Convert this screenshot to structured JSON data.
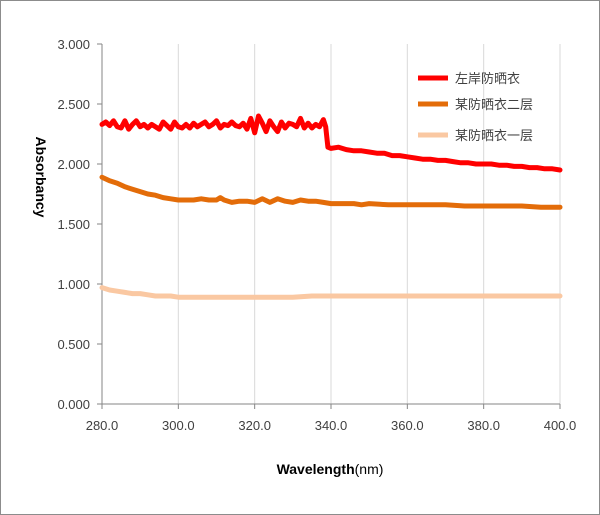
{
  "chart_data": {
    "type": "line",
    "xlabel": "Wavelength",
    "xlabel_unit": "(nm)",
    "ylabel": "Absorbancy",
    "xlim": [
      280,
      400
    ],
    "ylim": [
      0,
      3
    ],
    "x_ticks": [
      "280.0",
      "300.0",
      "320.0",
      "340.0",
      "360.0",
      "380.0",
      "400.0"
    ],
    "y_ticks": [
      "0.000",
      "0.500",
      "1.000",
      "1.500",
      "2.000",
      "2.500",
      "3.000"
    ],
    "grid": "vertical",
    "legend_position": "top-right",
    "series": [
      {
        "name": "左岸防晒衣",
        "color": "#ff0000",
        "points": [
          [
            280,
            2.33
          ],
          [
            281,
            2.35
          ],
          [
            282,
            2.32
          ],
          [
            283,
            2.36
          ],
          [
            284,
            2.31
          ],
          [
            285,
            2.3
          ],
          [
            286,
            2.36
          ],
          [
            287,
            2.29
          ],
          [
            288,
            2.33
          ],
          [
            289,
            2.36
          ],
          [
            290,
            2.31
          ],
          [
            291,
            2.33
          ],
          [
            292,
            2.3
          ],
          [
            293,
            2.33
          ],
          [
            294,
            2.31
          ],
          [
            295,
            2.29
          ],
          [
            296,
            2.35
          ],
          [
            297,
            2.32
          ],
          [
            298,
            2.29
          ],
          [
            299,
            2.35
          ],
          [
            300,
            2.31
          ],
          [
            301,
            2.3
          ],
          [
            302,
            2.33
          ],
          [
            303,
            2.3
          ],
          [
            304,
            2.34
          ],
          [
            305,
            2.31
          ],
          [
            306,
            2.33
          ],
          [
            307,
            2.35
          ],
          [
            308,
            2.31
          ],
          [
            309,
            2.33
          ],
          [
            310,
            2.36
          ],
          [
            311,
            2.3
          ],
          [
            312,
            2.33
          ],
          [
            313,
            2.32
          ],
          [
            314,
            2.35
          ],
          [
            315,
            2.32
          ],
          [
            316,
            2.31
          ],
          [
            317,
            2.34
          ],
          [
            318,
            2.29
          ],
          [
            319,
            2.38
          ],
          [
            320,
            2.26
          ],
          [
            321,
            2.4
          ],
          [
            322,
            2.34
          ],
          [
            323,
            2.27
          ],
          [
            324,
            2.36
          ],
          [
            325,
            2.31
          ],
          [
            326,
            2.27
          ],
          [
            327,
            2.35
          ],
          [
            328,
            2.3
          ],
          [
            329,
            2.34
          ],
          [
            330,
            2.33
          ],
          [
            331,
            2.31
          ],
          [
            332,
            2.38
          ],
          [
            333,
            2.3
          ],
          [
            334,
            2.34
          ],
          [
            335,
            2.3
          ],
          [
            336,
            2.33
          ],
          [
            337,
            2.31
          ],
          [
            338,
            2.37
          ],
          [
            338.6,
            2.31
          ],
          [
            339.2,
            2.14
          ],
          [
            340,
            2.13
          ],
          [
            342,
            2.14
          ],
          [
            344,
            2.12
          ],
          [
            346,
            2.11
          ],
          [
            348,
            2.11
          ],
          [
            350,
            2.1
          ],
          [
            352,
            2.09
          ],
          [
            354,
            2.09
          ],
          [
            356,
            2.07
          ],
          [
            358,
            2.07
          ],
          [
            360,
            2.06
          ],
          [
            362,
            2.05
          ],
          [
            364,
            2.04
          ],
          [
            366,
            2.04
          ],
          [
            368,
            2.03
          ],
          [
            370,
            2.03
          ],
          [
            372,
            2.02
          ],
          [
            374,
            2.01
          ],
          [
            376,
            2.01
          ],
          [
            378,
            2.0
          ],
          [
            380,
            2.0
          ],
          [
            382,
            2.0
          ],
          [
            384,
            1.99
          ],
          [
            386,
            1.99
          ],
          [
            388,
            1.98
          ],
          [
            390,
            1.98
          ],
          [
            392,
            1.97
          ],
          [
            394,
            1.97
          ],
          [
            396,
            1.96
          ],
          [
            398,
            1.96
          ],
          [
            400,
            1.95
          ]
        ]
      },
      {
        "name": "某防晒衣二层",
        "color": "#e36c09",
        "points": [
          [
            280,
            1.89
          ],
          [
            282,
            1.86
          ],
          [
            284,
            1.84
          ],
          [
            286,
            1.81
          ],
          [
            288,
            1.79
          ],
          [
            290,
            1.77
          ],
          [
            292,
            1.75
          ],
          [
            294,
            1.74
          ],
          [
            296,
            1.72
          ],
          [
            298,
            1.71
          ],
          [
            300,
            1.7
          ],
          [
            302,
            1.7
          ],
          [
            304,
            1.7
          ],
          [
            306,
            1.71
          ],
          [
            308,
            1.7
          ],
          [
            310,
            1.7
          ],
          [
            311,
            1.72
          ],
          [
            312,
            1.7
          ],
          [
            314,
            1.68
          ],
          [
            316,
            1.69
          ],
          [
            318,
            1.69
          ],
          [
            320,
            1.68
          ],
          [
            322,
            1.71
          ],
          [
            324,
            1.68
          ],
          [
            326,
            1.71
          ],
          [
            328,
            1.69
          ],
          [
            330,
            1.68
          ],
          [
            332,
            1.7
          ],
          [
            334,
            1.69
          ],
          [
            336,
            1.69
          ],
          [
            338,
            1.68
          ],
          [
            340,
            1.67
          ],
          [
            342,
            1.67
          ],
          [
            344,
            1.67
          ],
          [
            346,
            1.67
          ],
          [
            348,
            1.66
          ],
          [
            350,
            1.67
          ],
          [
            355,
            1.66
          ],
          [
            360,
            1.66
          ],
          [
            365,
            1.66
          ],
          [
            370,
            1.66
          ],
          [
            375,
            1.65
          ],
          [
            380,
            1.65
          ],
          [
            385,
            1.65
          ],
          [
            390,
            1.65
          ],
          [
            395,
            1.64
          ],
          [
            400,
            1.64
          ]
        ]
      },
      {
        "name": "某防晒衣一层",
        "color": "#fac8a2",
        "points": [
          [
            280,
            0.97
          ],
          [
            282,
            0.95
          ],
          [
            284,
            0.94
          ],
          [
            286,
            0.93
          ],
          [
            288,
            0.92
          ],
          [
            290,
            0.92
          ],
          [
            292,
            0.91
          ],
          [
            294,
            0.9
          ],
          [
            296,
            0.9
          ],
          [
            298,
            0.9
          ],
          [
            300,
            0.89
          ],
          [
            305,
            0.89
          ],
          [
            310,
            0.89
          ],
          [
            315,
            0.89
          ],
          [
            320,
            0.89
          ],
          [
            325,
            0.89
          ],
          [
            330,
            0.89
          ],
          [
            335,
            0.9
          ],
          [
            340,
            0.9
          ],
          [
            350,
            0.9
          ],
          [
            360,
            0.9
          ],
          [
            370,
            0.9
          ],
          [
            380,
            0.9
          ],
          [
            390,
            0.9
          ],
          [
            400,
            0.9
          ]
        ]
      }
    ]
  }
}
